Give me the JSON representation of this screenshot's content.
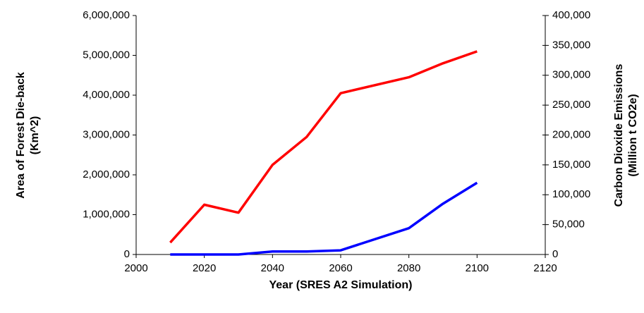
{
  "chart_data": {
    "type": "line",
    "xlabel": "Year (SRES A2 Simulation)",
    "ylabel": [
      "Area of Forest Die-back",
      "(Km^2)"
    ],
    "y2label": [
      "Carbon Dioxide Emissions",
      "(Million t CO2e)"
    ],
    "x": [
      2010,
      2020,
      2030,
      2040,
      2050,
      2060,
      2080,
      2090,
      2100
    ],
    "series": [
      {
        "color": "#ff0000",
        "values": [
          300000,
          1250000,
          1050000,
          2250000,
          2950000,
          4050000,
          4450000,
          4800000,
          5100000
        ]
      },
      {
        "color": "#0000ff",
        "axis": "y2",
        "values": [
          0,
          0,
          0,
          5000,
          5000,
          7000,
          44000,
          85000,
          120000
        ]
      }
    ],
    "xlim": [
      2000,
      2120
    ],
    "xticks": [
      2000,
      2020,
      2040,
      2060,
      2080,
      2100,
      2120
    ],
    "ylim": [
      0,
      6000000
    ],
    "yticks": [
      0,
      {
        "value": 1000000,
        "label": "1,000,000"
      },
      {
        "value": 2000000,
        "label": "2,000,000"
      },
      {
        "value": 3000000,
        "label": "3,000,000"
      },
      {
        "value": 4000000,
        "label": "4,000,000"
      },
      {
        "value": 5000000,
        "label": "5,000,000"
      },
      {
        "value": 6000000,
        "label": "6,000,000"
      }
    ],
    "y2lim": [
      0,
      400000
    ],
    "y2ticks": [
      0,
      {
        "value": 50000,
        "label": "50,000"
      },
      {
        "value": 100000,
        "label": "100,000"
      },
      {
        "value": 150000,
        "label": "150,000"
      },
      {
        "value": 200000,
        "label": "200,000"
      },
      {
        "value": 250000,
        "label": "250,000"
      },
      {
        "value": 300000,
        "label": "300,000"
      },
      {
        "value": 350000,
        "label": "350,000"
      },
      {
        "value": 400000,
        "label": "400,000"
      }
    ]
  }
}
